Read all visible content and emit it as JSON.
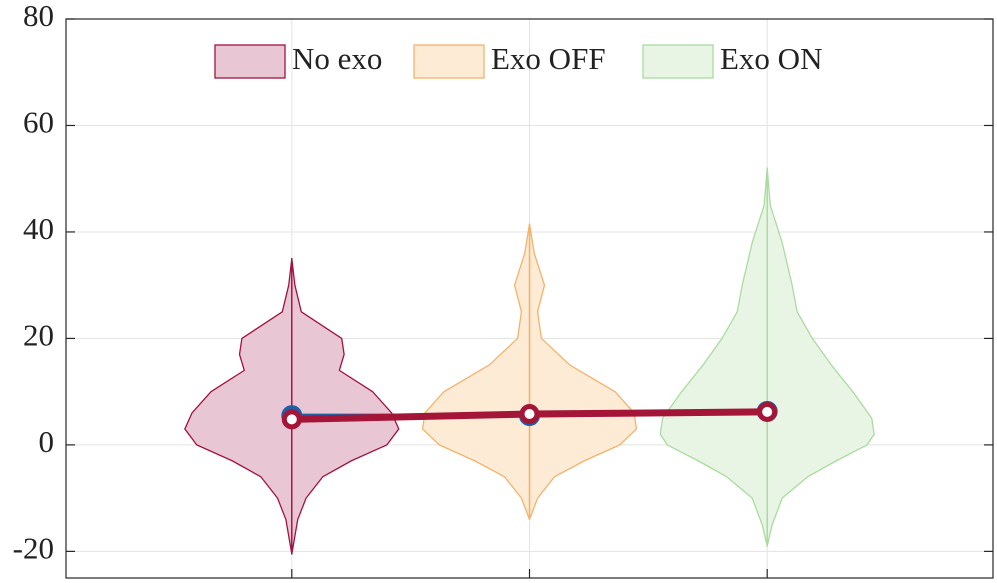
{
  "chart_data": {
    "type": "violin",
    "categories": [
      null,
      null,
      null
    ],
    "x": [
      1,
      2,
      3
    ],
    "xlim": [
      0.05,
      3.95
    ],
    "xticks": [
      1,
      2,
      3
    ],
    "ylim": [
      -25,
      80
    ],
    "yticks": [
      -20,
      0,
      20,
      40,
      60,
      80
    ],
    "grid": true,
    "legend": "upper center",
    "series": [
      {
        "name": "No exo",
        "color": "#e8c6d4",
        "edge_color": "#a3123f",
        "violin_y": [
          35,
          30,
          25,
          20,
          17,
          14,
          10,
          6,
          3,
          0,
          -3,
          -6,
          -10,
          -14,
          -20.5
        ],
        "violin_width": [
          0,
          0.013,
          0.04,
          0.21,
          0.22,
          0.2,
          0.34,
          0.42,
          0.45,
          0.4,
          0.25,
          0.13,
          0.06,
          0.025,
          0
        ]
      },
      {
        "name": "Exo OFF",
        "color": "#fdebd6",
        "edge_color": "#f4b26c",
        "violin_y": [
          41.5,
          36,
          30,
          25,
          20,
          15,
          10,
          6,
          3,
          0,
          -3,
          -6,
          -10,
          -14
        ],
        "violin_width": [
          0,
          0.02,
          0.063,
          0.034,
          0.05,
          0.17,
          0.36,
          0.44,
          0.45,
          0.38,
          0.23,
          0.105,
          0.034,
          0
        ]
      },
      {
        "name": "Exo ON",
        "color": "#e8f5e4",
        "edge_color": "#a9dc9e",
        "violin_y": [
          52,
          45,
          38,
          30,
          25,
          20,
          15,
          10,
          5,
          2,
          0,
          -3,
          -6,
          -10,
          -15,
          -19
        ],
        "violin_width": [
          0,
          0.013,
          0.063,
          0.105,
          0.126,
          0.19,
          0.27,
          0.36,
          0.44,
          0.45,
          0.42,
          0.29,
          0.17,
          0.063,
          0.021,
          0
        ]
      }
    ],
    "lines": [
      {
        "color": "#1f5fa8",
        "values": [
          5.5,
          5.5,
          6.3
        ]
      },
      {
        "color": "#a31638",
        "values": [
          4.8,
          5.8,
          6.2
        ]
      }
    ]
  }
}
